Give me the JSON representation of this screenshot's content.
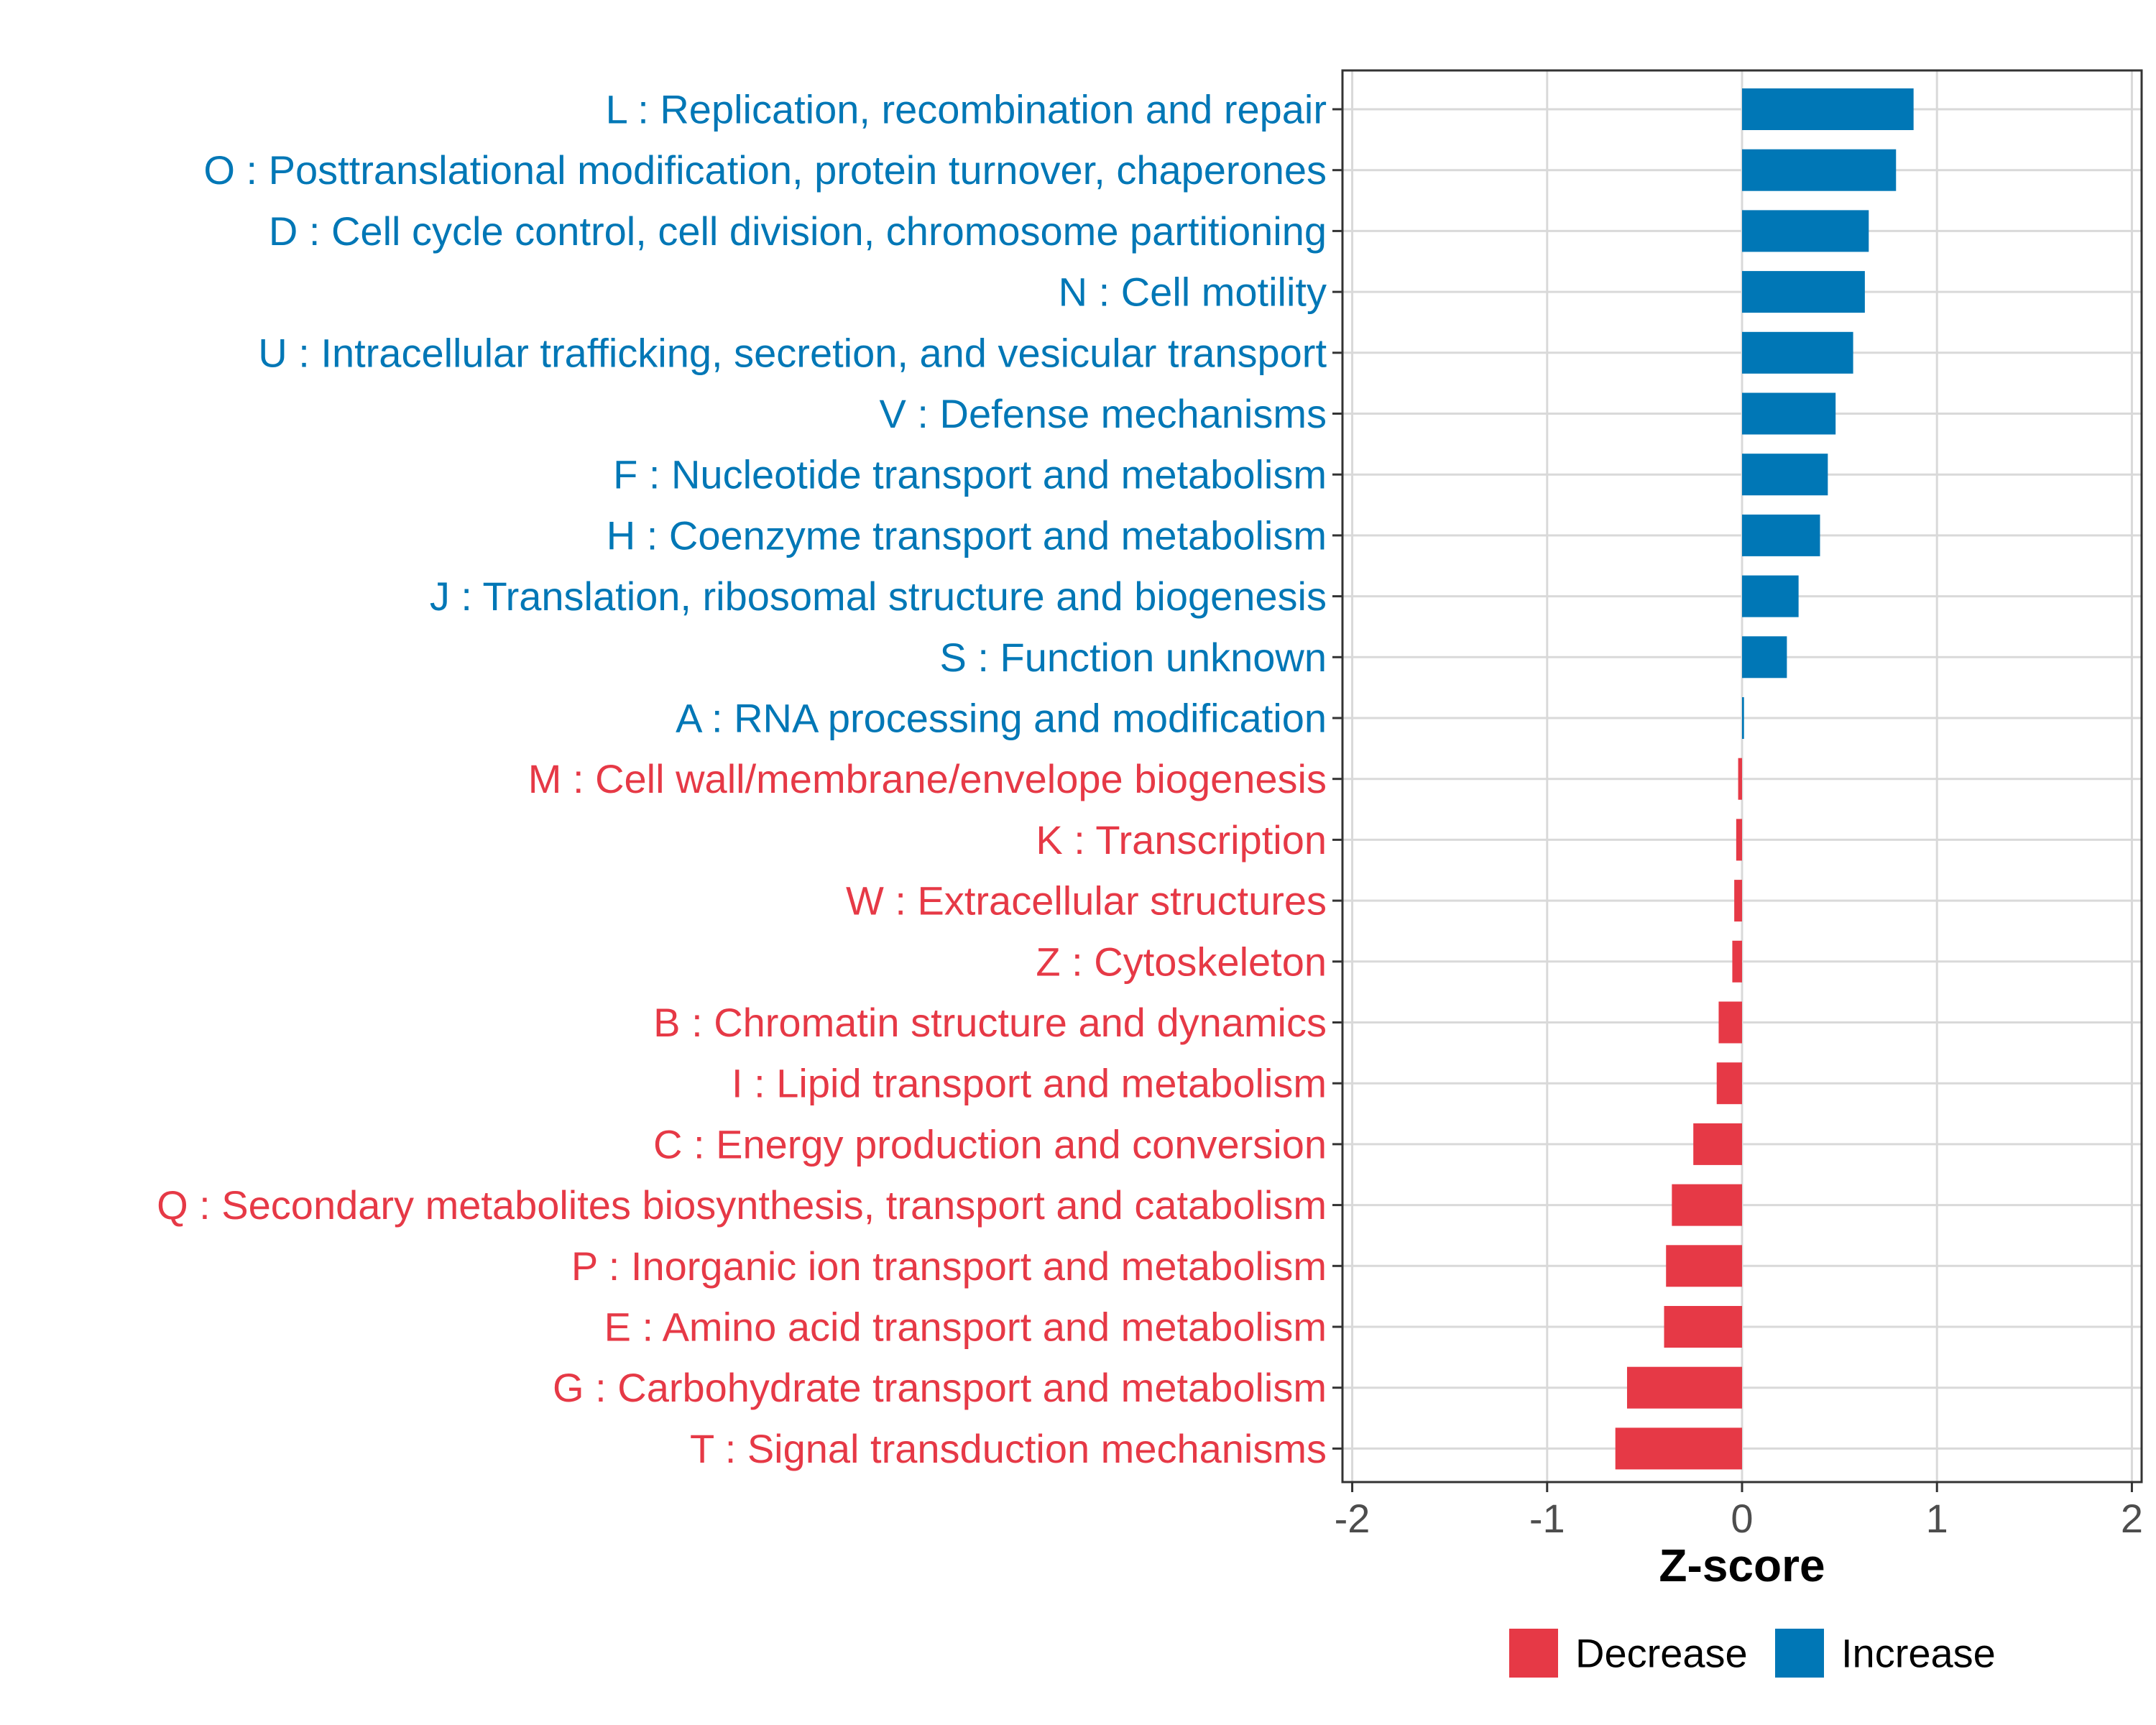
{
  "chart_data": {
    "type": "bar",
    "orientation": "horizontal",
    "xlabel": "Z-score",
    "ylabel": "",
    "xlim": [
      -2.05,
      2.05
    ],
    "x_ticks": [
      -2,
      -1,
      0,
      1,
      2
    ],
    "x_tick_labels": [
      "-2",
      "-1",
      "0",
      "1",
      "2"
    ],
    "grid": true,
    "legend_position": "bottom",
    "colors": {
      "Decrease": "#E63946",
      "Increase": "#0077B6"
    },
    "legend": [
      {
        "key": "Decrease",
        "label": "Decrease"
      },
      {
        "key": "Increase",
        "label": "Increase"
      }
    ],
    "categories": [
      {
        "label": "L : Replication, recombination and repair",
        "value": 0.88,
        "group": "Increase"
      },
      {
        "label": "O : Posttranslational modification, protein turnover, chaperones",
        "value": 0.79,
        "group": "Increase"
      },
      {
        "label": "D : Cell cycle control, cell division, chromosome partitioning",
        "value": 0.65,
        "group": "Increase"
      },
      {
        "label": "N : Cell motility",
        "value": 0.63,
        "group": "Increase"
      },
      {
        "label": "U : Intracellular trafficking, secretion, and vesicular transport",
        "value": 0.57,
        "group": "Increase"
      },
      {
        "label": "V : Defense mechanisms",
        "value": 0.48,
        "group": "Increase"
      },
      {
        "label": "F : Nucleotide transport and metabolism",
        "value": 0.44,
        "group": "Increase"
      },
      {
        "label": "H : Coenzyme transport and metabolism",
        "value": 0.4,
        "group": "Increase"
      },
      {
        "label": "J : Translation, ribosomal structure and biogenesis",
        "value": 0.29,
        "group": "Increase"
      },
      {
        "label": "S : Function unknown",
        "value": 0.23,
        "group": "Increase"
      },
      {
        "label": "A : RNA processing and modification",
        "value": 0.01,
        "group": "Increase"
      },
      {
        "label": "M : Cell wall/membrane/envelope biogenesis",
        "value": -0.02,
        "group": "Decrease"
      },
      {
        "label": "K : Transcription",
        "value": -0.03,
        "group": "Decrease"
      },
      {
        "label": "W : Extracellular structures",
        "value": -0.04,
        "group": "Decrease"
      },
      {
        "label": "Z : Cytoskeleton",
        "value": -0.05,
        "group": "Decrease"
      },
      {
        "label": "B : Chromatin structure and dynamics",
        "value": -0.12,
        "group": "Decrease"
      },
      {
        "label": "I : Lipid transport and metabolism",
        "value": -0.13,
        "group": "Decrease"
      },
      {
        "label": "C : Energy production and conversion",
        "value": -0.25,
        "group": "Decrease"
      },
      {
        "label": "Q : Secondary metabolites biosynthesis, transport and catabolism",
        "value": -0.36,
        "group": "Decrease"
      },
      {
        "label": "P : Inorganic ion transport and metabolism",
        "value": -0.39,
        "group": "Decrease"
      },
      {
        "label": "E : Amino acid transport and metabolism",
        "value": -0.4,
        "group": "Decrease"
      },
      {
        "label": "G : Carbohydrate transport and metabolism",
        "value": -0.59,
        "group": "Decrease"
      },
      {
        "label": "T : Signal transduction mechanisms",
        "value": -0.65,
        "group": "Decrease"
      }
    ]
  }
}
